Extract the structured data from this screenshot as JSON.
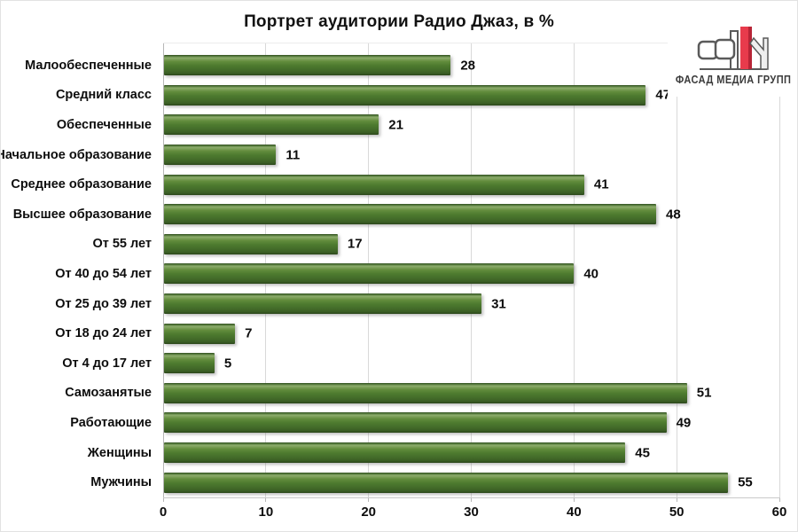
{
  "title": "Портрет аудитории Радио Джаз, в %",
  "logo": {
    "text": "ФАСАД МЕДИА ГРУПП",
    "accent_red": "#e83b4c",
    "accent_red_dark": "#b72436",
    "outline_gray": "#5a5a5a"
  },
  "chart_data": {
    "type": "bar",
    "orientation": "horizontal",
    "title": "Портрет аудитории Радио Джаз, в %",
    "categories": [
      "Малообеспеченные",
      "Средний класс",
      "Обеспеченные",
      "Начальное образование",
      "Среднее образование",
      "Высшее образование",
      "От 55 лет",
      "От 40 до 54 лет",
      "От 25 до 39 лет",
      "От 18 до 24 лет",
      "От 4 до 17 лет",
      "Самозанятые",
      "Работающие",
      "Женщины",
      "Мужчины"
    ],
    "values": [
      28,
      47,
      21,
      11,
      41,
      48,
      17,
      40,
      31,
      7,
      5,
      51,
      49,
      45,
      55
    ],
    "xlim": [
      0,
      60
    ],
    "x_ticks": [
      0,
      10,
      20,
      30,
      40,
      50,
      60
    ],
    "x_tick_labels": [
      "0",
      "10",
      "20",
      "30",
      "40",
      "50",
      "60"
    ],
    "grid": true,
    "legend": "none",
    "bar_color": "#4d7a2f",
    "bar_edge_dark": "#2e4a1c",
    "bar_highlight": "#8cab6b",
    "grid_color": "#d9d9d9",
    "axis_color": "#b7b7b7",
    "text_color": "#0d0d0d"
  }
}
